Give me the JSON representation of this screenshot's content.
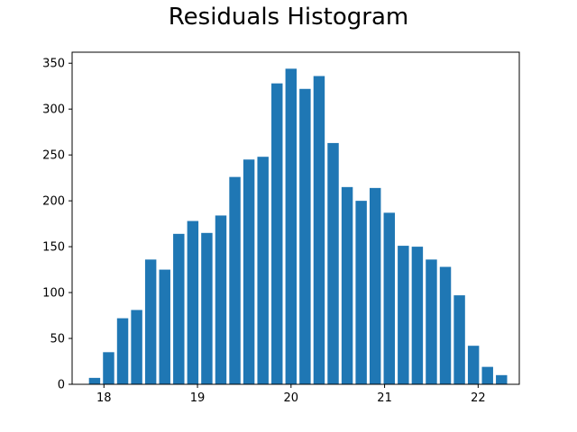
{
  "chart_data": {
    "type": "bar",
    "title": "Residuals Histogram",
    "xlabel": "",
    "ylabel": "",
    "xlim": [
      17.66,
      22.44
    ],
    "ylim": [
      0,
      362
    ],
    "x_ticks": [
      18,
      19,
      20,
      21,
      22
    ],
    "y_ticks": [
      0,
      50,
      100,
      150,
      200,
      250,
      300,
      350
    ],
    "bar_width": 0.12,
    "x": [
      17.9,
      18.05,
      18.2,
      18.35,
      18.5,
      18.65,
      18.8,
      18.95,
      19.1,
      19.25,
      19.4,
      19.55,
      19.7,
      19.85,
      20.0,
      20.15,
      20.3,
      20.45,
      20.6,
      20.75,
      20.9,
      21.05,
      21.2,
      21.35,
      21.5,
      21.65,
      21.8,
      21.95,
      22.1,
      22.25
    ],
    "values": [
      7,
      35,
      72,
      81,
      136,
      125,
      164,
      178,
      165,
      184,
      226,
      245,
      248,
      328,
      344,
      322,
      336,
      263,
      215,
      200,
      214,
      187,
      151,
      150,
      136,
      128,
      97,
      42,
      19,
      10
    ],
    "grid": false,
    "colors": {
      "bar": "#1f77b4",
      "axis": "#000000"
    }
  }
}
